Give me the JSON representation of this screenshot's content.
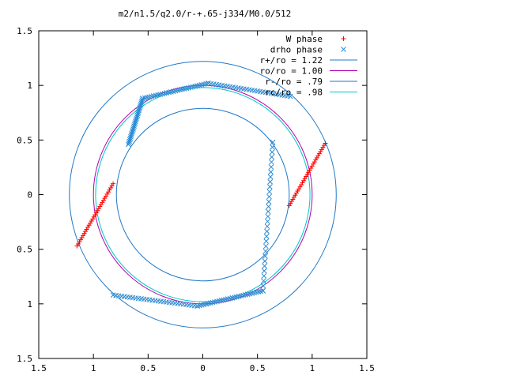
{
  "chart_data": {
    "type": "scatter",
    "title": "m2/n1.5/q2.0/r-+.65-j334/M0.0/512",
    "xlim": [
      -1.5,
      1.5
    ],
    "ylim": [
      -1.5,
      1.5
    ],
    "x_ticks": [
      {
        "value": -1.5,
        "label": "1.5"
      },
      {
        "value": -1.0,
        "label": "1"
      },
      {
        "value": -0.5,
        "label": "0.5"
      },
      {
        "value": 0.0,
        "label": "0"
      },
      {
        "value": 0.5,
        "label": "0.5"
      },
      {
        "value": 1.0,
        "label": "1"
      },
      {
        "value": 1.5,
        "label": "1.5"
      }
    ],
    "y_ticks": [
      {
        "value": 1.5,
        "label": "1.5"
      },
      {
        "value": 1.0,
        "label": "1"
      },
      {
        "value": 0.5,
        "label": "0.5"
      },
      {
        "value": 0.0,
        "label": "0"
      },
      {
        "value": -0.5,
        "label": "0.5"
      },
      {
        "value": -1.0,
        "label": "1"
      },
      {
        "value": -1.5,
        "label": "1.5"
      }
    ],
    "legend_position": "top-right",
    "circles": [
      {
        "name": "r+/ro = 1.22",
        "radius": 1.22,
        "color": "#1f78c8"
      },
      {
        "name": "ro/ro = 1.00",
        "radius": 1.0,
        "color": "#b000b0"
      },
      {
        "name": "r-/ro = .79",
        "radius": 0.79,
        "color": "#1f78c8"
      },
      {
        "name": "rc/ro = .98",
        "radius": 0.98,
        "color": "#00c8c8"
      }
    ],
    "series": [
      {
        "name": "W phase",
        "marker": "plus",
        "color": "#ff0000",
        "segments": [
          {
            "x_from": -1.15,
            "y_from": -0.47,
            "x_to": -0.82,
            "y_to": 0.1
          },
          {
            "x_from": 0.79,
            "y_from": -0.1,
            "x_to": 1.12,
            "y_to": 0.47
          }
        ]
      },
      {
        "name": "drho phase",
        "marker": "cross",
        "color": "#2c8ad2",
        "segments": [
          {
            "x_from": -0.68,
            "y_from": 0.46,
            "x_to": -0.55,
            "y_to": 0.88
          },
          {
            "x_from": -0.55,
            "y_from": 0.88,
            "x_to": 0.05,
            "y_to": 1.02
          },
          {
            "x_from": 0.05,
            "y_from": 1.02,
            "x_to": 0.8,
            "y_to": 0.9
          },
          {
            "x_from": 0.64,
            "y_from": 0.48,
            "x_to": 0.55,
            "y_to": -0.88
          },
          {
            "x_from": 0.55,
            "y_from": -0.88,
            "x_to": -0.05,
            "y_to": -1.02
          },
          {
            "x_from": -0.05,
            "y_from": -1.02,
            "x_to": -0.82,
            "y_to": -0.92
          }
        ]
      }
    ]
  }
}
